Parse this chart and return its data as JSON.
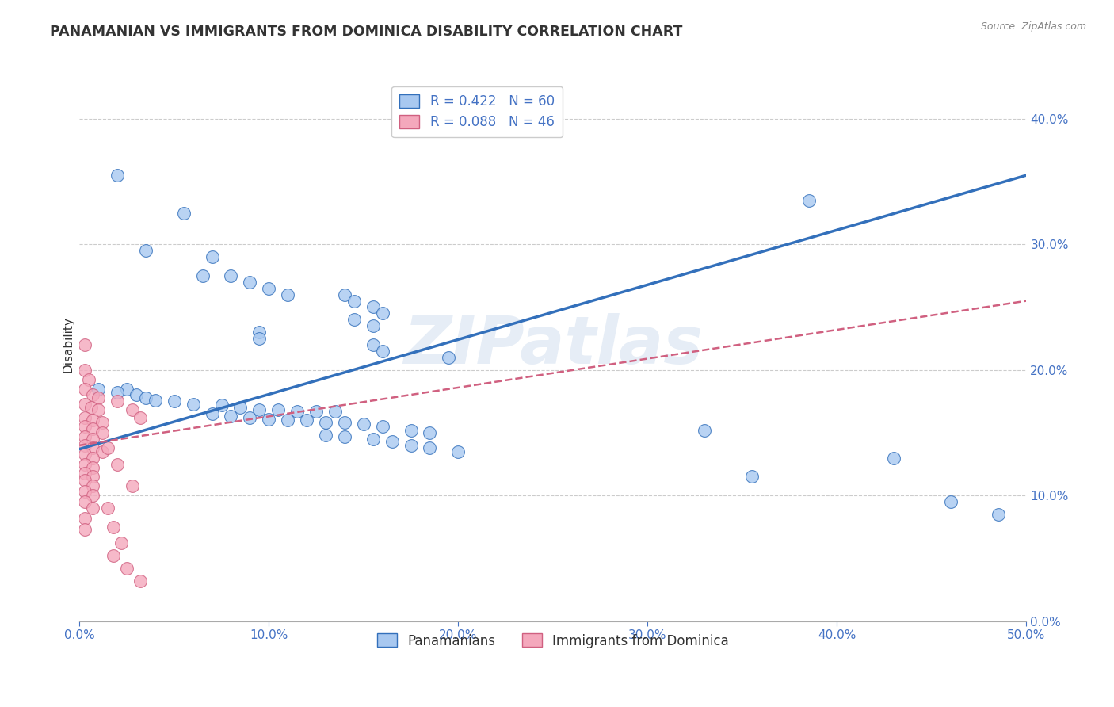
{
  "title": "PANAMANIAN VS IMMIGRANTS FROM DOMINICA DISABILITY CORRELATION CHART",
  "source": "Source: ZipAtlas.com",
  "xlabel": "",
  "ylabel": "Disability",
  "xlim": [
    0.0,
    0.5
  ],
  "ylim": [
    0.0,
    0.44
  ],
  "xticks": [
    0.0,
    0.1,
    0.2,
    0.3,
    0.4,
    0.5
  ],
  "yticks": [
    0.0,
    0.1,
    0.2,
    0.3,
    0.4
  ],
  "blue_label": "Panamanians",
  "pink_label": "Immigrants from Dominica",
  "blue_R": 0.422,
  "blue_N": 60,
  "pink_R": 0.088,
  "pink_N": 46,
  "blue_color": "#A8C8F0",
  "pink_color": "#F4A8BC",
  "trend_blue": "#3370BB",
  "trend_pink": "#D06080",
  "watermark": "ZIPatlas",
  "blue_trend_x": [
    0.0,
    0.5
  ],
  "blue_trend_y": [
    0.137,
    0.355
  ],
  "pink_trend_x": [
    0.0,
    0.5
  ],
  "pink_trend_y": [
    0.14,
    0.255
  ],
  "blue_points": [
    [
      0.02,
      0.355
    ],
    [
      0.055,
      0.325
    ],
    [
      0.035,
      0.295
    ],
    [
      0.07,
      0.29
    ],
    [
      0.065,
      0.275
    ],
    [
      0.08,
      0.275
    ],
    [
      0.09,
      0.27
    ],
    [
      0.1,
      0.265
    ],
    [
      0.11,
      0.26
    ],
    [
      0.14,
      0.26
    ],
    [
      0.145,
      0.255
    ],
    [
      0.155,
      0.25
    ],
    [
      0.16,
      0.245
    ],
    [
      0.145,
      0.24
    ],
    [
      0.155,
      0.235
    ],
    [
      0.095,
      0.23
    ],
    [
      0.095,
      0.225
    ],
    [
      0.155,
      0.22
    ],
    [
      0.16,
      0.215
    ],
    [
      0.195,
      0.21
    ],
    [
      0.025,
      0.185
    ],
    [
      0.01,
      0.185
    ],
    [
      0.02,
      0.182
    ],
    [
      0.03,
      0.18
    ],
    [
      0.035,
      0.178
    ],
    [
      0.04,
      0.176
    ],
    [
      0.05,
      0.175
    ],
    [
      0.06,
      0.173
    ],
    [
      0.075,
      0.172
    ],
    [
      0.085,
      0.17
    ],
    [
      0.095,
      0.168
    ],
    [
      0.105,
      0.168
    ],
    [
      0.115,
      0.167
    ],
    [
      0.125,
      0.167
    ],
    [
      0.135,
      0.167
    ],
    [
      0.07,
      0.165
    ],
    [
      0.08,
      0.163
    ],
    [
      0.09,
      0.162
    ],
    [
      0.1,
      0.161
    ],
    [
      0.11,
      0.16
    ],
    [
      0.12,
      0.16
    ],
    [
      0.13,
      0.158
    ],
    [
      0.14,
      0.158
    ],
    [
      0.15,
      0.157
    ],
    [
      0.16,
      0.155
    ],
    [
      0.175,
      0.152
    ],
    [
      0.185,
      0.15
    ],
    [
      0.13,
      0.148
    ],
    [
      0.14,
      0.147
    ],
    [
      0.155,
      0.145
    ],
    [
      0.165,
      0.143
    ],
    [
      0.175,
      0.14
    ],
    [
      0.185,
      0.138
    ],
    [
      0.2,
      0.135
    ],
    [
      0.33,
      0.152
    ],
    [
      0.385,
      0.335
    ],
    [
      0.355,
      0.115
    ],
    [
      0.43,
      0.13
    ],
    [
      0.46,
      0.095
    ],
    [
      0.485,
      0.085
    ]
  ],
  "pink_points": [
    [
      0.003,
      0.22
    ],
    [
      0.003,
      0.2
    ],
    [
      0.005,
      0.192
    ],
    [
      0.003,
      0.185
    ],
    [
      0.007,
      0.18
    ],
    [
      0.01,
      0.178
    ],
    [
      0.003,
      0.173
    ],
    [
      0.006,
      0.17
    ],
    [
      0.01,
      0.168
    ],
    [
      0.003,
      0.162
    ],
    [
      0.007,
      0.16
    ],
    [
      0.012,
      0.158
    ],
    [
      0.003,
      0.155
    ],
    [
      0.007,
      0.153
    ],
    [
      0.012,
      0.15
    ],
    [
      0.003,
      0.147
    ],
    [
      0.007,
      0.145
    ],
    [
      0.003,
      0.14
    ],
    [
      0.007,
      0.138
    ],
    [
      0.012,
      0.135
    ],
    [
      0.003,
      0.133
    ],
    [
      0.007,
      0.13
    ],
    [
      0.003,
      0.125
    ],
    [
      0.007,
      0.122
    ],
    [
      0.003,
      0.118
    ],
    [
      0.007,
      0.115
    ],
    [
      0.003,
      0.112
    ],
    [
      0.007,
      0.108
    ],
    [
      0.003,
      0.103
    ],
    [
      0.007,
      0.1
    ],
    [
      0.003,
      0.095
    ],
    [
      0.007,
      0.09
    ],
    [
      0.003,
      0.082
    ],
    [
      0.003,
      0.073
    ],
    [
      0.02,
      0.175
    ],
    [
      0.028,
      0.168
    ],
    [
      0.032,
      0.162
    ],
    [
      0.015,
      0.138
    ],
    [
      0.02,
      0.125
    ],
    [
      0.028,
      0.108
    ],
    [
      0.015,
      0.09
    ],
    [
      0.018,
      0.075
    ],
    [
      0.022,
      0.062
    ],
    [
      0.018,
      0.052
    ],
    [
      0.025,
      0.042
    ],
    [
      0.032,
      0.032
    ]
  ]
}
